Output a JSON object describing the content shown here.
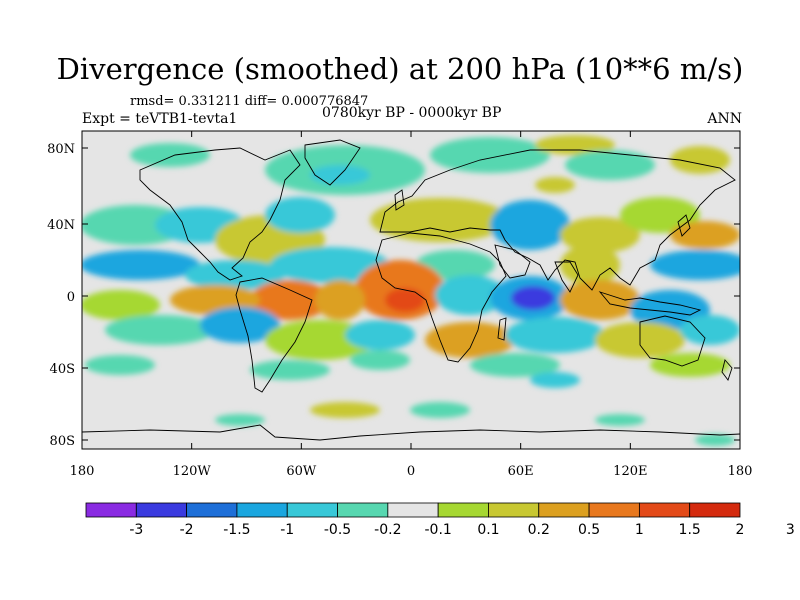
{
  "figure": {
    "title": "Divergence (smoothed) at 200 hPa (10**6 m/s)",
    "stats_text": "rmsd= 0.331211 diff= 0.000776847",
    "experiment_text": "Expt = teVTB1-tevta1",
    "period_text": "0780kyr BP - 0000kyr BP",
    "season_text": "ANN"
  },
  "axes": {
    "lon_ticks": [
      "180",
      "120W",
      "60W",
      "0",
      "60E",
      "120E",
      "180"
    ],
    "lat_ticks": [
      "80N",
      "40N",
      "0",
      "40S",
      "80S"
    ]
  },
  "colorbar": {
    "colors": [
      "#8a2be2",
      "#3a3adf",
      "#1e6fd8",
      "#1aa6df",
      "#38c8d8",
      "#57d7b0",
      "#e5e5e5",
      "#a6d832",
      "#c8c832",
      "#dca020",
      "#e8781e",
      "#e34a18",
      "#d42a0e"
    ],
    "labels": [
      "-3",
      "-2",
      "-1.5",
      "-1",
      "-0.5",
      "-0.2",
      "-0.1",
      "0.1",
      "0.2",
      "0.5",
      "1",
      "1.5",
      "2",
      "3"
    ]
  },
  "colors": {
    "background_field": "#e5e5e5",
    "strong_negative": "#3a3adf",
    "weak_negative": "#38c8d8",
    "weak_positive": "#c8c832",
    "strong_positive": "#e8781e"
  }
}
